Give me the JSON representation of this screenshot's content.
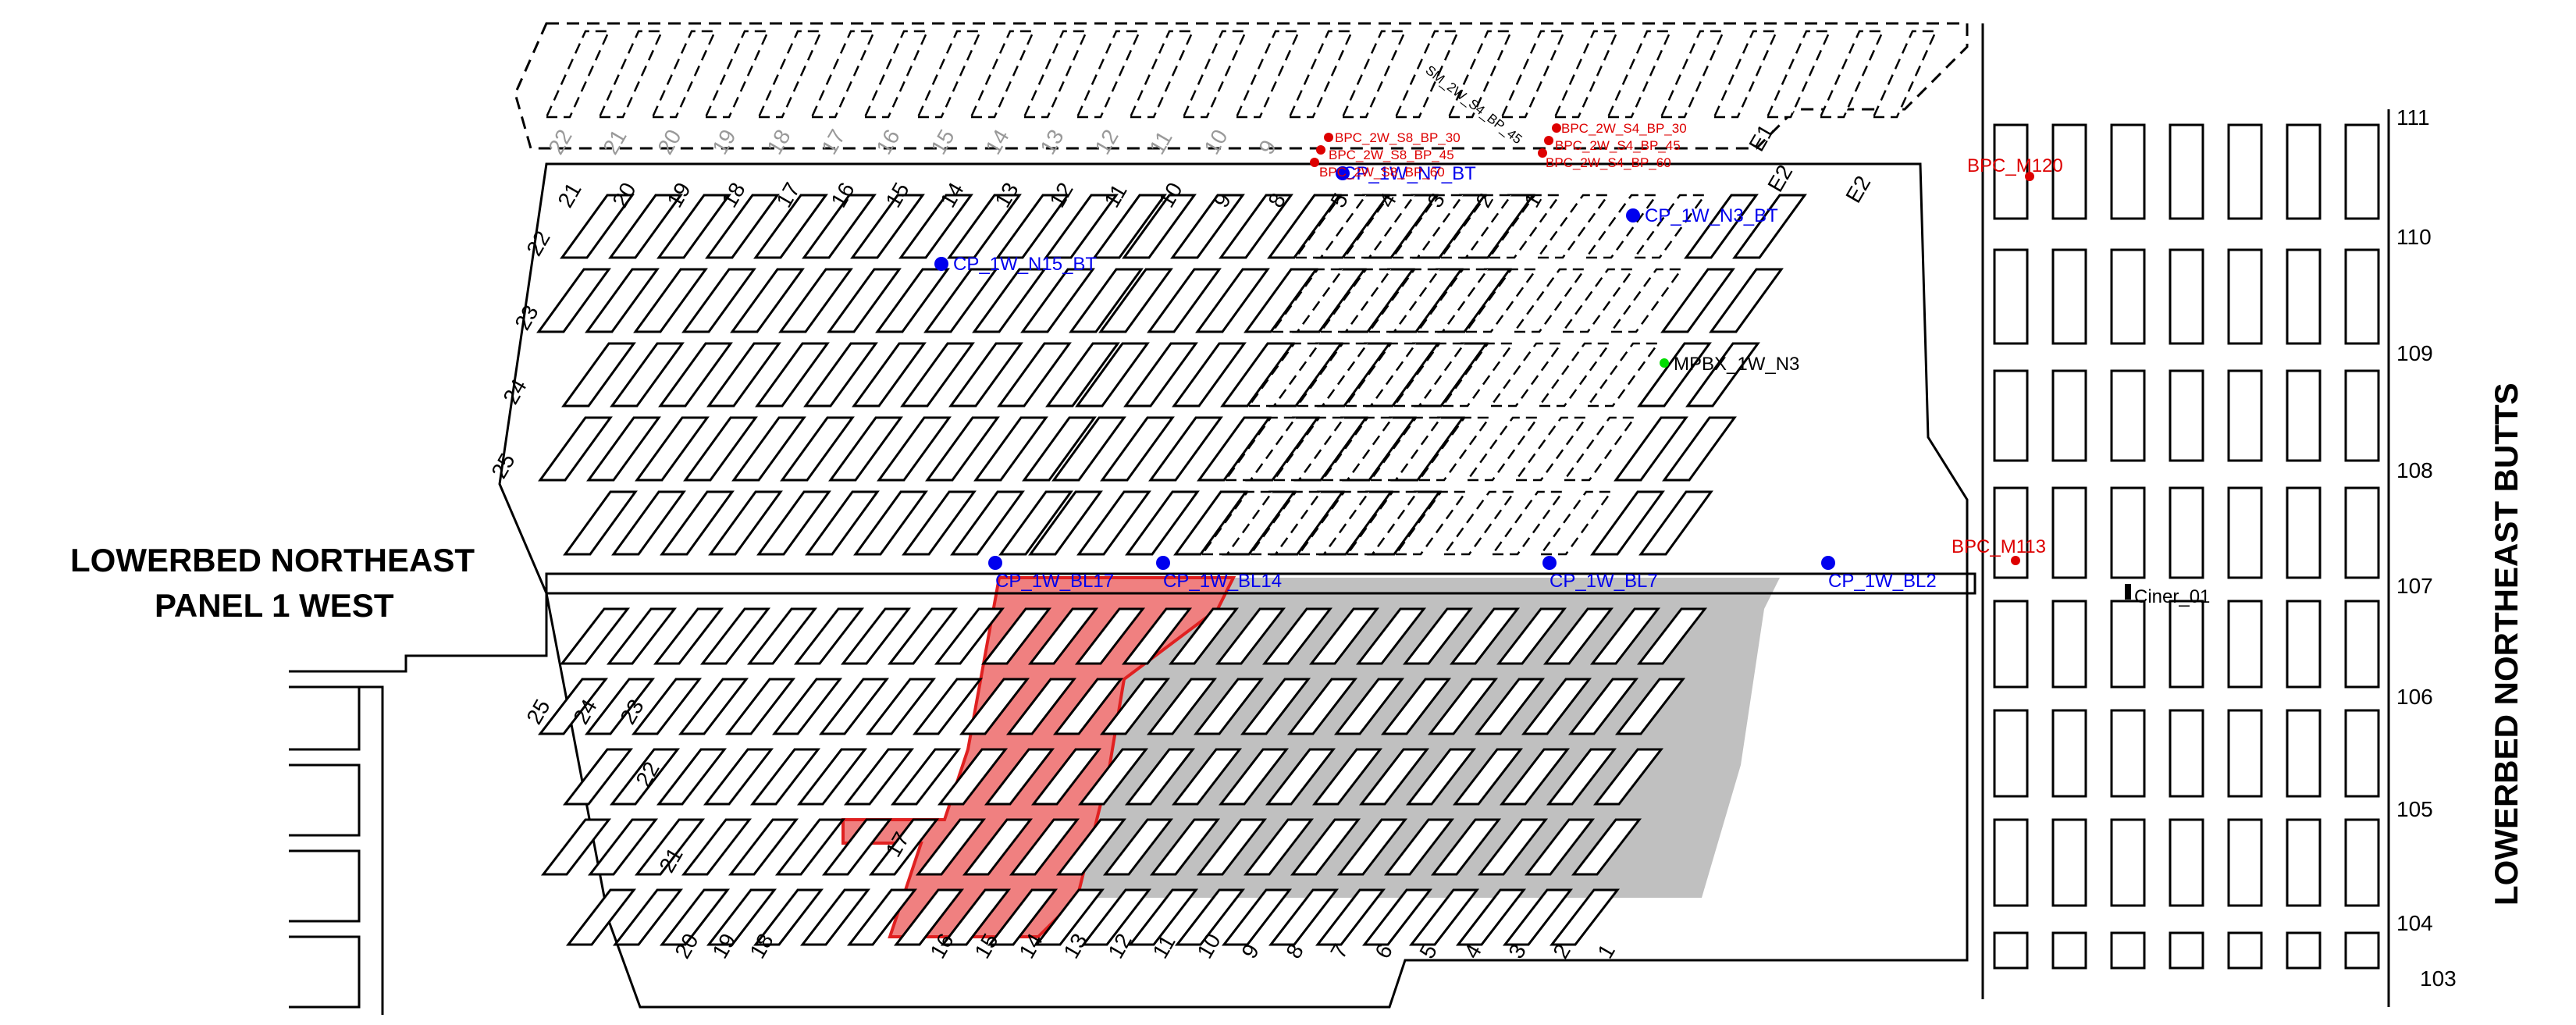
{
  "map": {
    "titles": {
      "panel_line1": "LOWERBED NORTHEAST",
      "panel_line2": "PANEL 1 WEST",
      "butts": "LOWERBED NORTHEAST BUTTS"
    },
    "colors": {
      "mined_red_fill": "#f08080",
      "mined_red_stroke": "#e02020",
      "mined_grey": "#c0c0c0",
      "cp_point": "#0000ee",
      "bpc_point": "#dd0000",
      "mpbx_point": "#00dd00",
      "ciner_point": "#000000"
    },
    "upper_dashed_crosscut_numbers": [
      "22",
      "21",
      "20",
      "19",
      "18",
      "17",
      "16",
      "15",
      "14",
      "13",
      "12",
      "11",
      "10",
      "9"
    ],
    "upper_solid_crosscut_numbers": [
      "21",
      "20",
      "19",
      "18",
      "17",
      "16",
      "15",
      "14",
      "13",
      "12",
      "11",
      "10",
      "9",
      "8",
      "5",
      "4",
      "3",
      "2",
      "1"
    ],
    "upper_left_side_numbers": [
      "22",
      "23",
      "24",
      "25"
    ],
    "entry_labels": [
      "E1",
      "E2",
      "E2"
    ],
    "lower_left_side_numbers": [
      "25",
      "24",
      "23",
      "22",
      "21",
      "20",
      "19",
      "18"
    ],
    "lower_crosscut_numbers": [
      "17",
      "16",
      "15",
      "14",
      "13",
      "12",
      "11",
      "10",
      "9",
      "8",
      "7",
      "6",
      "5",
      "4",
      "3",
      "2",
      "1"
    ],
    "row_numbers": [
      "111",
      "110",
      "109",
      "108",
      "107",
      "106",
      "105",
      "104",
      "103"
    ],
    "points": {
      "cp": [
        "CP_1W_N7_BT",
        "CP_1W_N3_BT",
        "CP_1W_N15_BT",
        "CP_1W_BL17",
        "CP_1W_BL14",
        "CP_1W_BL7",
        "CP_1W_BL2"
      ],
      "bpc": [
        "BPC_2W_S8_BP_30",
        "BPC_2W_S8_BP_45",
        "BPC_2W_S8_BP_60",
        "BPC_2W_S4_BP_30",
        "BPC_2W_S4_BP_45",
        "BPC_2W_S4_BP_60",
        "BPC_M120",
        "BPC_M113"
      ],
      "mpbx": "MPBX_1W_N3",
      "ciner": "Ciner_01",
      "sm_label": "SM_2W_S4_BP_45"
    }
  }
}
